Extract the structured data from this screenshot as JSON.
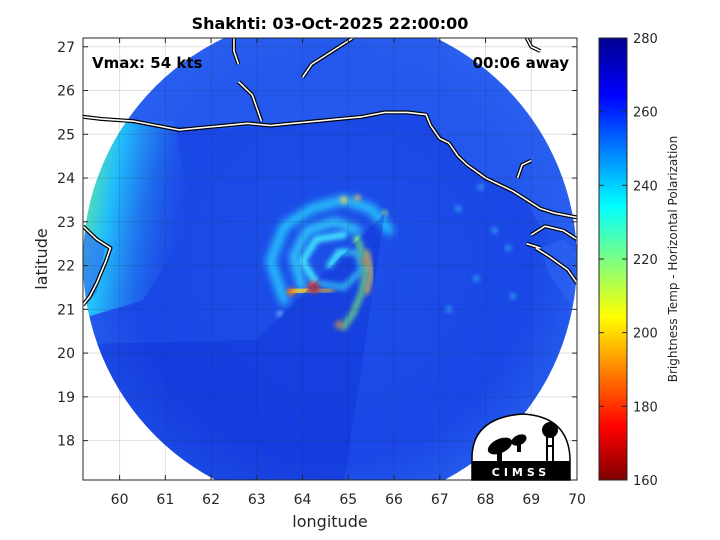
{
  "chart_data": {
    "type": "heatmap",
    "title": "Shakhti: 03-Oct-2025 22:00:00",
    "xlabel": "longitude",
    "ylabel": "latitude",
    "xlim": [
      59.2,
      70
    ],
    "ylim": [
      17.1,
      27.2
    ],
    "xticks": [
      60,
      61,
      62,
      63,
      64,
      65,
      66,
      67,
      68,
      69,
      70
    ],
    "yticks": [
      18,
      19,
      20,
      21,
      22,
      23,
      24,
      25,
      26,
      27
    ],
    "grid": true,
    "annotations": {
      "vmax": "Vmax: 54 kts",
      "time_offset": "00:06 away"
    },
    "colorbar": {
      "label": "Brightness Temp - Horizontal Polarization",
      "range": [
        160,
        280
      ],
      "ticks": [
        160,
        180,
        200,
        220,
        240,
        260,
        280
      ],
      "colormap": "jet"
    },
    "swath": {
      "center_lon": 64.6,
      "center_lat": 22.1,
      "radius_deg": 5.4
    },
    "storm_center": {
      "lon": 64.6,
      "lat": 22.0
    },
    "logo_text": "CIMSS",
    "colors": {
      "jet_stops": [
        "#00008f",
        "#0000ff",
        "#00ffff",
        "#ffff00",
        "#ff0000",
        "#800000"
      ],
      "ocean": "#1640e0",
      "land": "#2a5cf0",
      "coast": "#ffffff"
    }
  }
}
